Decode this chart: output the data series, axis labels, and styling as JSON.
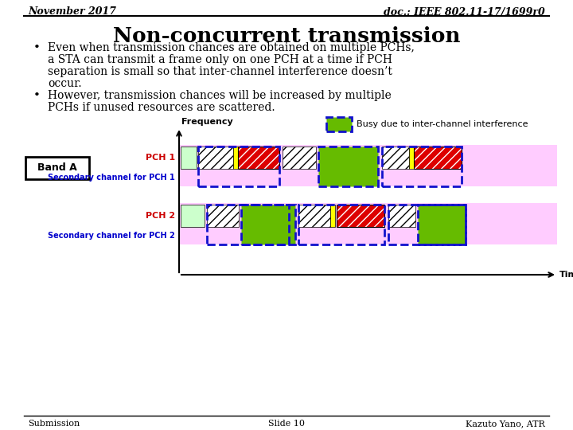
{
  "title_left": "November 2017",
  "title_right": "doc.: IEEE 802.11-17/1699r0",
  "main_title": "Non-concurrent transmission",
  "bullet1_line1": "Even when transmission chances are obtained on multiple PCHs,",
  "bullet1_line2": "a STA can transmit a frame only on one PCH at a time if PCH",
  "bullet1_line3": "separation is small so that inter-channel interference doesn’t",
  "bullet1_line4": "occur.",
  "bullet2_line1": "However, transmission chances will be increased by multiple",
  "bullet2_line2": "PCHs if unused resources are scattered.",
  "footer_left": "Submission",
  "footer_mid": "Slide 10",
  "footer_right": "Kazuto Yano, ATR",
  "bg_color": "#ffffff",
  "color_green": "#66bb00",
  "color_light_green": "#ccffcc",
  "color_red": "#dd0000",
  "color_yellow": "#ffff00",
  "color_blue_dashed": "#1111cc",
  "color_band_bg": "#ffccff"
}
